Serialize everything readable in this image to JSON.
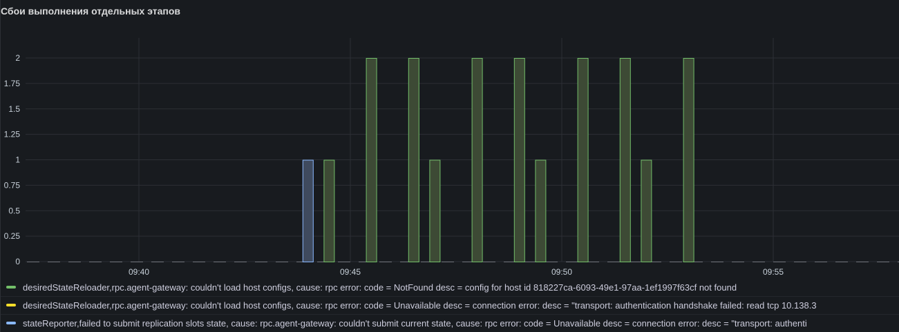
{
  "panel": {
    "title": "Сбои выполнения отдельных этапов"
  },
  "colors": {
    "background": "#181b1f",
    "grid": "#2c2f35",
    "green_stroke": "#73bf69",
    "green_fill": "#3d4a35",
    "yellow": "#fade2a",
    "blue_stroke": "#8ab8ff",
    "blue_fill": "#3f4a5e"
  },
  "chart_data": {
    "type": "bar",
    "x_unit": "time (HH:MM)",
    "x_range": [
      "09:37",
      "09:58"
    ],
    "ylim": [
      0,
      2
    ],
    "y_ticks": [
      "0",
      "0.25",
      "0.5",
      "0.75",
      "1",
      "1.25",
      "1.5",
      "1.75",
      "2"
    ],
    "x_ticks": [
      "09:40",
      "09:45",
      "09:50",
      "09:55"
    ],
    "grid": true,
    "legend_position": "bottom",
    "series": [
      {
        "name": "desiredStateReloader,rpc.agent-gateway: couldn't load host configs, cause: rpc error: code = NotFound desc = config for host id 818227ca-6093-49e1-97aa-1ef1997f63cf not found",
        "color": "#73bf69",
        "points": [
          {
            "x": "09:44:30",
            "y": 1
          },
          {
            "x": "09:45:30",
            "y": 2
          },
          {
            "x": "09:46:30",
            "y": 2
          },
          {
            "x": "09:47:00",
            "y": 1
          },
          {
            "x": "09:48:00",
            "y": 2
          },
          {
            "x": "09:49:00",
            "y": 2
          },
          {
            "x": "09:49:30",
            "y": 1
          },
          {
            "x": "09:50:30",
            "y": 2
          },
          {
            "x": "09:51:30",
            "y": 2
          },
          {
            "x": "09:52:00",
            "y": 1
          },
          {
            "x": "09:53:00",
            "y": 2
          }
        ]
      },
      {
        "name": "desiredStateReloader,rpc.agent-gateway: couldn't load host configs, cause: rpc error: code = Unavailable desc = connection error: desc = \"transport: authentication handshake failed: read tcp 10.138.3",
        "color": "#fade2a",
        "points": []
      },
      {
        "name": "stateReporter,failed to submit replication slots state, cause: rpc.agent-gateway: couldn't submit current state, cause: rpc error: code = Unavailable desc = connection error: desc = \"transport: authenti",
        "color": "#8ab8ff",
        "points": [
          {
            "x": "09:44:00",
            "y": 1
          }
        ]
      }
    ]
  }
}
